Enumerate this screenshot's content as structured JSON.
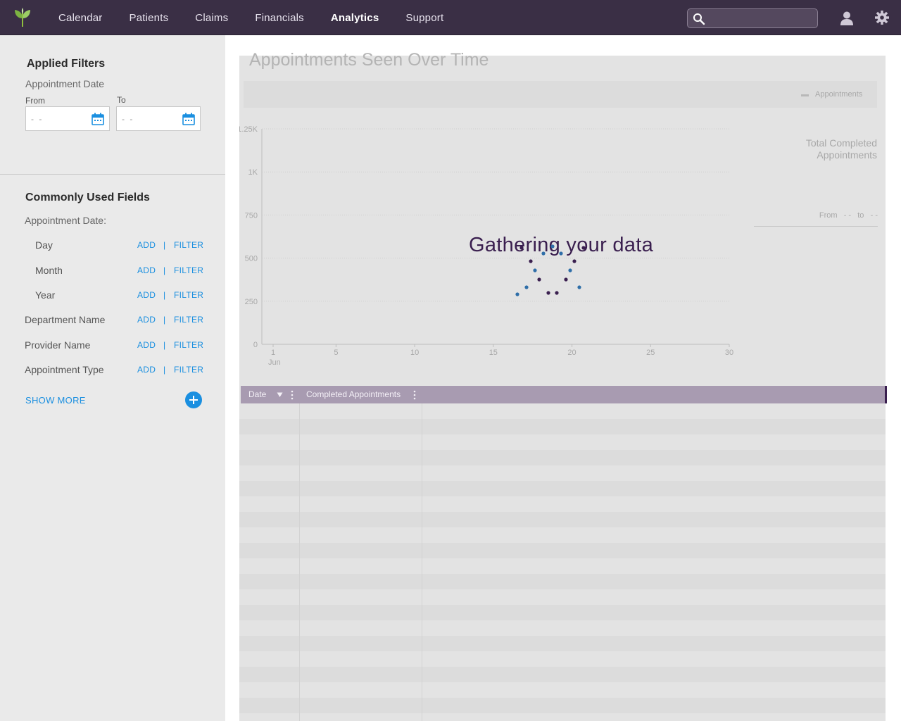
{
  "nav": {
    "logo": "leaf-logo",
    "links": [
      "Calendar",
      "Patients",
      "Claims",
      "Financials",
      "Analytics",
      "Support"
    ],
    "active": "Analytics",
    "search_value": "",
    "icons": [
      "search-icon",
      "user-icon",
      "gear-icon"
    ]
  },
  "sidebar": {
    "applied_filters": {
      "title": "Applied Filters",
      "field_label": "Appointment Date",
      "from_label": "From",
      "to_label": "To",
      "from_value": "- -",
      "to_value": "- -"
    },
    "common": {
      "title": "Commonly Used Fields",
      "group_label": "Appointment Date:",
      "fields": [
        {
          "label": "Day",
          "add": "ADD",
          "sep": "|",
          "filter": "FILTER"
        },
        {
          "label": "Month",
          "add": "ADD",
          "sep": "|",
          "filter": "FILTER"
        },
        {
          "label": "Year",
          "add": "ADD",
          "sep": "|",
          "filter": "FILTER"
        },
        {
          "label": "Department Name",
          "add": "ADD",
          "sep": "|",
          "filter": "FILTER"
        },
        {
          "label": "Provider Name",
          "add": "ADD",
          "sep": "|",
          "filter": "FILTER"
        },
        {
          "label": "Appointment Type",
          "add": "ADD",
          "sep": "|",
          "filter": "FILTER"
        }
      ],
      "show_more": "SHOW MORE"
    }
  },
  "main": {
    "chart_title": "Appointments Seen Over Time",
    "legend_label": "Appointments",
    "loading_text": "Gathering your data",
    "side_metric": {
      "line1": "Total Completed",
      "line2": "Appointments"
    },
    "side_range": {
      "from": "From",
      "from_value": "- -",
      "to": "to",
      "to_value": "- -"
    },
    "grid": {
      "columns": [
        "Date",
        "Completed Appointments"
      ]
    }
  },
  "chart_data": {
    "type": "line",
    "title": "Appointments Seen Over Time",
    "ytick_labels": [
      "0",
      "250",
      "500",
      "750",
      "1K",
      "1.25K"
    ],
    "xtick_labels": [
      "1",
      "5",
      "10",
      "15",
      "20",
      "25",
      "30"
    ],
    "x_sublabel": "Jun",
    "ylim": [
      0,
      1250
    ],
    "xlim": [
      1,
      30
    ],
    "grid": true,
    "legend": "top-right",
    "series": [
      {
        "name": "Appointments",
        "values": []
      }
    ]
  },
  "colors": {
    "nav_bg": "#3a2f45",
    "accent": "#1a8fe0",
    "loading_text": "#3a1f4f",
    "spinner_dark": "#3a1f4f",
    "spinner_blue": "#2f6ea8",
    "grid_header": "#a89bb1"
  }
}
